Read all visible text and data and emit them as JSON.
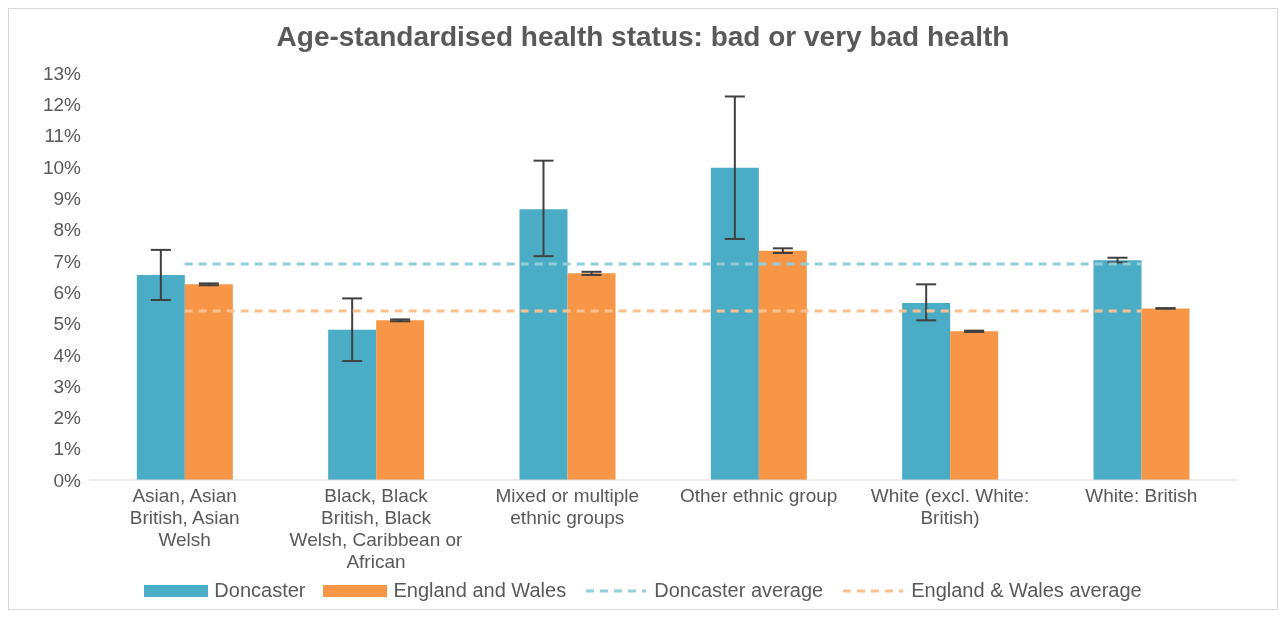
{
  "chart_data": {
    "type": "bar",
    "title": "Age-standardised health status: bad or very bad health",
    "categories": [
      "Asian, Asian British, Asian Welsh",
      "Black, Black British, Black Welsh, Caribbean or African",
      "Mixed or multiple ethnic groups",
      "Other ethnic group",
      "White (excl. White: British)",
      "White: British"
    ],
    "series": [
      {
        "name": "Doncaster",
        "color": "#4bacc6",
        "values": [
          6.55,
          4.8,
          8.65,
          9.97,
          5.65,
          7.02
        ],
        "errors": [
          [
            5.75,
            7.35
          ],
          [
            3.8,
            5.8
          ],
          [
            7.15,
            10.2
          ],
          [
            7.7,
            12.25
          ],
          [
            5.1,
            6.25
          ],
          [
            6.95,
            7.1
          ]
        ]
      },
      {
        "name": "England and Wales",
        "color": "#f79646",
        "values": [
          6.25,
          5.1,
          6.6,
          7.32,
          4.75,
          5.48
        ],
        "errors": [
          [
            6.22,
            6.28
          ],
          [
            5.07,
            5.13
          ],
          [
            6.55,
            6.65
          ],
          [
            7.25,
            7.4
          ],
          [
            4.73,
            4.77
          ],
          [
            5.47,
            5.49
          ]
        ]
      }
    ],
    "ref_lines": [
      {
        "axis": "y",
        "value": 6.9,
        "label": "Doncaster average",
        "color": "#92cddc",
        "line_style": "dashed"
      },
      {
        "axis": "y",
        "value": 5.4,
        "label": "England & Wales average",
        "color": "#fac090",
        "line_style": "dashed"
      }
    ],
    "ylim": [
      0,
      13
    ],
    "yticks": [
      {
        "value": 0,
        "label": "0%"
      },
      {
        "value": 1,
        "label": "1%"
      },
      {
        "value": 2,
        "label": "2%"
      },
      {
        "value": 3,
        "label": "3%"
      },
      {
        "value": 4,
        "label": "4%"
      },
      {
        "value": 5,
        "label": "5%"
      },
      {
        "value": 6,
        "label": "6%"
      },
      {
        "value": 7,
        "label": "7%"
      },
      {
        "value": 8,
        "label": "8%"
      },
      {
        "value": 9,
        "label": "9%"
      },
      {
        "value": 10,
        "label": "10%"
      },
      {
        "value": 11,
        "label": "11%"
      },
      {
        "value": 12,
        "label": "12%"
      },
      {
        "value": 13,
        "label": "13%"
      }
    ],
    "grid": false,
    "legend": "bottom"
  }
}
